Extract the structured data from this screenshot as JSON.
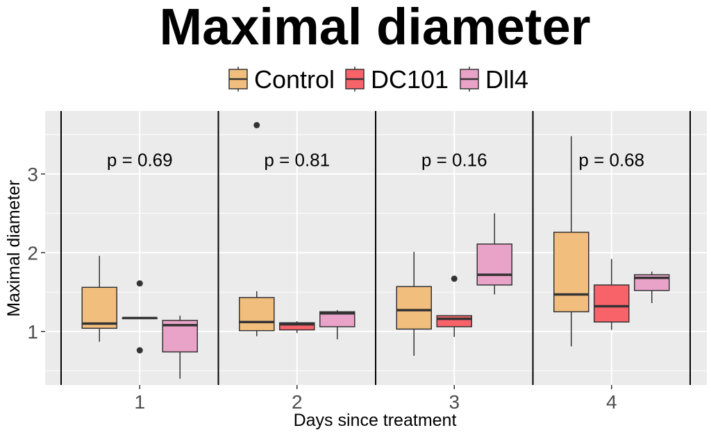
{
  "chart_data": {
    "type": "boxplot",
    "title": "Maximal diameter",
    "xlabel": "Days since treatment",
    "ylabel": "Maximal diameter",
    "categories": [
      "1",
      "2",
      "3",
      "4"
    ],
    "y_ticks": [
      1,
      2,
      3
    ],
    "ylim": [
      0.32,
      3.8
    ],
    "legend_position": "top",
    "annotations": [
      "p = 0.69",
      "p = 0.81",
      "p = 0.16",
      "p = 0.68"
    ],
    "annotation_y": 3.1,
    "series": [
      {
        "name": "Control",
        "color": "#F2BE7E",
        "boxes": [
          {
            "min": 0.87,
            "q1": 1.04,
            "median": 1.1,
            "q3": 1.56,
            "max": 1.96,
            "outliers": []
          },
          {
            "min": 0.94,
            "q1": 1.01,
            "median": 1.12,
            "q3": 1.43,
            "max": 1.51,
            "outliers": [
              3.62
            ]
          },
          {
            "min": 0.69,
            "q1": 1.03,
            "median": 1.27,
            "q3": 1.57,
            "max": 2.01,
            "outliers": []
          },
          {
            "min": 0.81,
            "q1": 1.25,
            "median": 1.47,
            "q3": 2.26,
            "max": 3.48,
            "outliers": []
          }
        ]
      },
      {
        "name": "DC101",
        "color": "#F8636A",
        "boxes": [
          {
            "min": 1.17,
            "q1": 1.17,
            "median": 1.17,
            "q3": 1.17,
            "max": 1.17,
            "outliers": [
              1.61,
              0.76
            ]
          },
          {
            "min": 0.98,
            "q1": 1.02,
            "median": 1.09,
            "q3": 1.11,
            "max": 1.13,
            "outliers": []
          },
          {
            "min": 0.93,
            "q1": 1.06,
            "median": 1.16,
            "q3": 1.2,
            "max": 1.2,
            "outliers": [
              1.67
            ]
          },
          {
            "min": 1.02,
            "q1": 1.12,
            "median": 1.32,
            "q3": 1.59,
            "max": 1.92,
            "outliers": []
          }
        ]
      },
      {
        "name": "Dll4",
        "color": "#E9A3C9",
        "boxes": [
          {
            "min": 0.4,
            "q1": 0.74,
            "median": 1.08,
            "q3": 1.14,
            "max": 1.2,
            "outliers": []
          },
          {
            "min": 0.9,
            "q1": 1.06,
            "median": 1.23,
            "q3": 1.25,
            "max": 1.27,
            "outliers": []
          },
          {
            "min": 1.47,
            "q1": 1.59,
            "median": 1.72,
            "q3": 2.11,
            "max": 2.5,
            "outliers": []
          },
          {
            "min": 1.36,
            "q1": 1.52,
            "median": 1.68,
            "q3": 1.72,
            "max": 1.76,
            "outliers": []
          }
        ]
      }
    ]
  }
}
